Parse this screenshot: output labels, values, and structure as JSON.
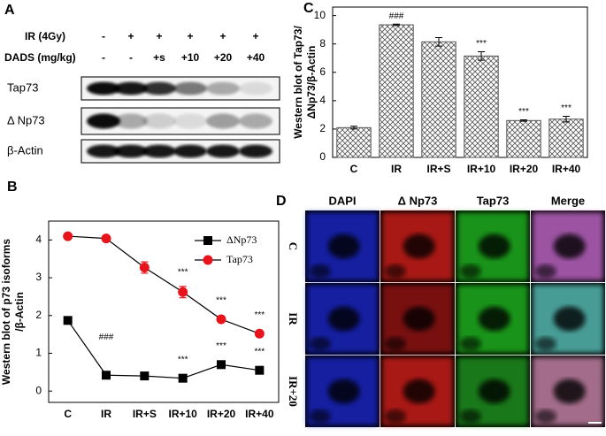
{
  "panel_a": {
    "label": "A",
    "ir_label": "IR (4Gy)",
    "ir_signs": [
      "-",
      "+",
      "+",
      "+",
      "+",
      "+"
    ],
    "dads_label": "DADS (mg/kg)",
    "dads_signs": [
      "-",
      "-",
      "+s",
      "+10",
      "+20",
      "+40"
    ],
    "bands": [
      "Tap73",
      "Δ Np73",
      "β-Actin"
    ]
  },
  "chart_data": [
    {
      "type": "line",
      "panel_label": "B",
      "y_label": [
        "Western blot of p73 isoforms",
        "/β-Actin"
      ],
      "categories": [
        "C",
        "IR",
        "IR+S",
        "IR+10",
        "IR+20",
        "IR+40"
      ],
      "ylim": [
        -0.3,
        4.5
      ],
      "yticks": [
        0,
        1,
        2,
        3,
        4
      ],
      "legend": "upper right",
      "series": [
        {
          "name": "ΔNp73",
          "color": "#000000",
          "marker": "square",
          "values": [
            1.87,
            0.42,
            0.4,
            0.34,
            0.7,
            0.55
          ],
          "annotations": [
            null,
            "###",
            null,
            "***",
            "***",
            "***"
          ]
        },
        {
          "name": "Tap73",
          "color": "#e8141b",
          "marker": "circle",
          "values": [
            4.1,
            4.04,
            3.27,
            2.62,
            1.9,
            1.52
          ],
          "errors": [
            0.05,
            0.05,
            0.15,
            0.15,
            0.08,
            0.08
          ],
          "annotations": [
            null,
            null,
            null,
            "***",
            "***",
            "***"
          ]
        }
      ]
    },
    {
      "type": "bar",
      "panel_label": "C",
      "y_label": [
        "Western blot of Tap73/",
        "ΔNp73/β-Actin"
      ],
      "categories": [
        "C",
        "IR",
        "IR+S",
        "IR+10",
        "IR+20",
        "IR+40"
      ],
      "ylim": [
        0,
        10.6
      ],
      "yticks": [
        0,
        2,
        4,
        6,
        8,
        10
      ],
      "values": [
        2.1,
        9.35,
        8.15,
        7.15,
        2.6,
        2.7
      ],
      "errors": [
        0.1,
        0.05,
        0.3,
        0.3,
        0.05,
        0.2
      ],
      "annotations": [
        null,
        "###",
        null,
        "***",
        "***",
        "***"
      ],
      "color": "#555555"
    }
  ],
  "panel_d": {
    "label": "D",
    "columns": [
      "DAPI",
      "Δ Np73",
      "Tap73",
      "Merge"
    ],
    "rows": [
      "C",
      "IR",
      "IR+20"
    ]
  }
}
